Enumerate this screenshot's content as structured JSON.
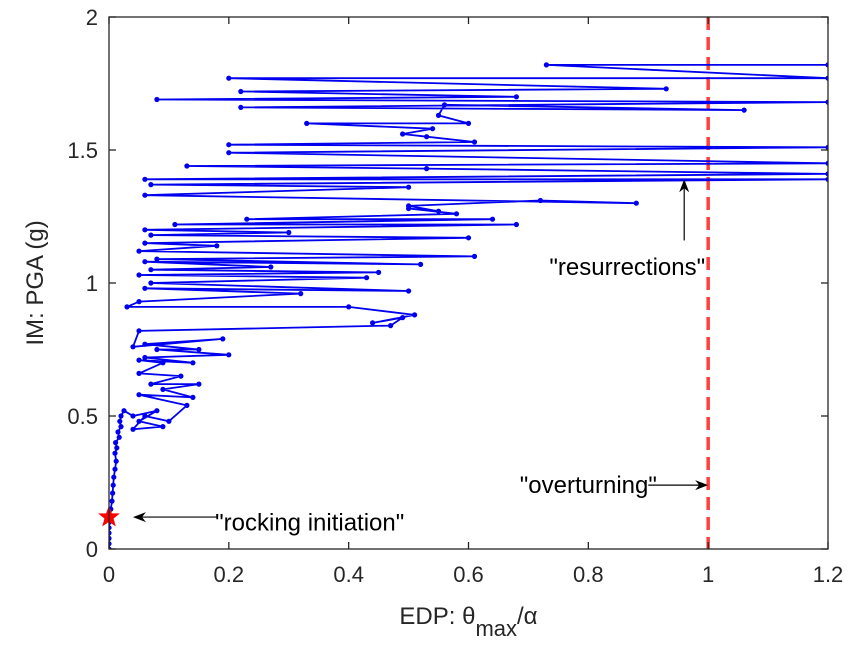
{
  "chart_data": {
    "type": "line",
    "xlabel_main": "EDP: θ",
    "xlabel_sub": "max",
    "xlabel_tail": "/α",
    "ylabel": "IM: PGA (g)",
    "xlim": [
      0,
      1.2
    ],
    "ylim": [
      0,
      2
    ],
    "x_ticks": [
      0,
      0.2,
      0.4,
      0.6,
      0.8,
      1,
      1.2
    ],
    "x_tick_labels": [
      "0",
      "0.2",
      "0.4",
      "0.6",
      "0.8",
      "1",
      "1.2"
    ],
    "y_ticks": [
      0,
      0.5,
      1,
      1.5,
      2
    ],
    "y_tick_labels": [
      "0",
      "0.5",
      "1",
      "1.5",
      "2"
    ],
    "grid": false,
    "colors": {
      "curve": "#0000ee",
      "overturning_line": "#ff4040",
      "initiation_marker": "#ff0000",
      "annotation": "#000000"
    },
    "series": [
      {
        "values_xy": [
          [
            0.0,
            0.0
          ],
          [
            0.0,
            0.02
          ],
          [
            0.0,
            0.04
          ],
          [
            0.0,
            0.06
          ],
          [
            0.0,
            0.08
          ],
          [
            0.0,
            0.1
          ],
          [
            0.0,
            0.12
          ],
          [
            0.003,
            0.15
          ],
          [
            0.005,
            0.18
          ],
          [
            0.006,
            0.21
          ],
          [
            0.007,
            0.24
          ],
          [
            0.008,
            0.27
          ],
          [
            0.01,
            0.3
          ],
          [
            0.012,
            0.33
          ],
          [
            0.01,
            0.36
          ],
          [
            0.013,
            0.38
          ],
          [
            0.011,
            0.4
          ],
          [
            0.017,
            0.42
          ],
          [
            0.015,
            0.44
          ],
          [
            0.02,
            0.46
          ],
          [
            0.018,
            0.48
          ],
          [
            0.02,
            0.5
          ],
          [
            0.025,
            0.52
          ],
          [
            0.04,
            0.5
          ],
          [
            0.08,
            0.52
          ],
          [
            0.05,
            0.48
          ],
          [
            0.09,
            0.46
          ],
          [
            0.04,
            0.45
          ],
          [
            0.06,
            0.5
          ],
          [
            0.1,
            0.48
          ],
          [
            0.13,
            0.54
          ],
          [
            0.05,
            0.58
          ],
          [
            0.14,
            0.57
          ],
          [
            0.09,
            0.6
          ],
          [
            0.15,
            0.62
          ],
          [
            0.07,
            0.62
          ],
          [
            0.12,
            0.65
          ],
          [
            0.05,
            0.66
          ],
          [
            0.09,
            0.7
          ],
          [
            0.05,
            0.71
          ],
          [
            0.14,
            0.7
          ],
          [
            0.06,
            0.72
          ],
          [
            0.2,
            0.73
          ],
          [
            0.08,
            0.75
          ],
          [
            0.15,
            0.75
          ],
          [
            0.06,
            0.77
          ],
          [
            0.19,
            0.79
          ],
          [
            0.04,
            0.76
          ],
          [
            0.05,
            0.82
          ],
          [
            0.47,
            0.84
          ],
          [
            0.49,
            0.87
          ],
          [
            0.44,
            0.85
          ],
          [
            0.51,
            0.88
          ],
          [
            0.4,
            0.91
          ],
          [
            0.03,
            0.91
          ],
          [
            0.05,
            0.93
          ],
          [
            0.32,
            0.96
          ],
          [
            0.06,
            0.98
          ],
          [
            0.5,
            0.97
          ],
          [
            0.07,
            1.0
          ],
          [
            0.43,
            1.02
          ],
          [
            0.05,
            1.03
          ],
          [
            0.45,
            1.04
          ],
          [
            0.07,
            1.05
          ],
          [
            0.27,
            1.06
          ],
          [
            0.06,
            1.08
          ],
          [
            0.52,
            1.07
          ],
          [
            0.08,
            1.09
          ],
          [
            0.61,
            1.1
          ],
          [
            0.05,
            1.12
          ],
          [
            0.18,
            1.14
          ],
          [
            0.06,
            1.15
          ],
          [
            0.6,
            1.17
          ],
          [
            0.07,
            1.18
          ],
          [
            0.3,
            1.19
          ],
          [
            0.06,
            1.2
          ],
          [
            0.68,
            1.22
          ],
          [
            0.11,
            1.22
          ],
          [
            0.64,
            1.24
          ],
          [
            0.23,
            1.24
          ],
          [
            0.58,
            1.26
          ],
          [
            0.5,
            1.28
          ],
          [
            0.55,
            1.27
          ],
          [
            0.5,
            1.29
          ],
          [
            0.72,
            1.31
          ],
          [
            0.88,
            1.3
          ],
          [
            0.06,
            1.33
          ],
          [
            0.5,
            1.36
          ],
          [
            0.07,
            1.37
          ],
          [
            1.2,
            1.39
          ],
          [
            0.06,
            1.39
          ],
          [
            1.2,
            1.41
          ],
          [
            0.53,
            1.43
          ],
          [
            0.13,
            1.44
          ],
          [
            1.2,
            1.45
          ],
          [
            0.2,
            1.49
          ],
          [
            1.2,
            1.51
          ],
          [
            0.2,
            1.52
          ],
          [
            0.61,
            1.53
          ],
          [
            0.53,
            1.55
          ],
          [
            0.49,
            1.56
          ],
          [
            0.54,
            1.58
          ],
          [
            0.33,
            1.6
          ],
          [
            0.6,
            1.6
          ],
          [
            0.55,
            1.63
          ],
          [
            0.56,
            1.67
          ],
          [
            1.06,
            1.65
          ],
          [
            0.22,
            1.66
          ],
          [
            1.2,
            1.68
          ],
          [
            0.08,
            1.69
          ],
          [
            0.68,
            1.7
          ],
          [
            0.22,
            1.72
          ],
          [
            0.93,
            1.73
          ],
          [
            0.2,
            1.77
          ],
          [
            1.2,
            1.77
          ],
          [
            0.73,
            1.82
          ],
          [
            1.2,
            1.82
          ]
        ]
      }
    ],
    "overturning_x": 1.0,
    "initiation_point": [
      0.0,
      0.12
    ],
    "annotations": [
      {
        "text": "\"resurrections\"",
        "tx": 0.995,
        "ty": 1.03,
        "ax": 0.96,
        "ay1": 1.16,
        "ay2": 1.39
      },
      {
        "text": "\"overturning\"",
        "tx": 0.8,
        "ty": 0.24,
        "ax1": 0.9,
        "ax2": 1.0,
        "ay": 0.24
      },
      {
        "text": "\"rocking initiation\"",
        "tx": 0.335,
        "ty": 0.1,
        "ax1": 0.18,
        "ax2": 0.04,
        "ay": 0.12
      }
    ]
  }
}
